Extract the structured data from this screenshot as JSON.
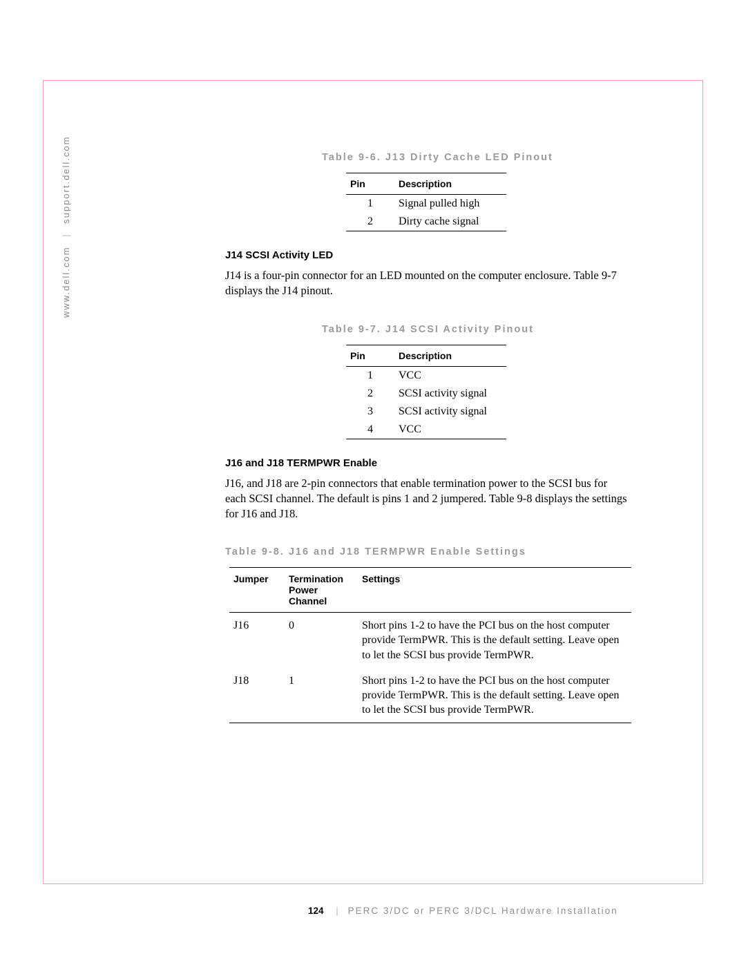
{
  "side": {
    "left": "www.dell.com",
    "right": "support.dell.com"
  },
  "footer": {
    "page": "124",
    "title": "PERC 3/DC or PERC 3/DCL Hardware Installation"
  },
  "table96": {
    "caption": "Table 9-6. J13 Dirty Cache LED Pinout",
    "headers": [
      "Pin",
      "Description"
    ],
    "rows": [
      [
        "1",
        "Signal pulled high"
      ],
      [
        "2",
        "Dirty cache signal"
      ]
    ]
  },
  "sec_j14": {
    "heading": "J14 SCSI Activity LED",
    "body": "J14 is a four-pin connector for an LED mounted on the computer enclosure. Table 9-7 displays the J14 pinout."
  },
  "table97": {
    "caption": "Table 9-7. J14 SCSI Activity Pinout",
    "headers": [
      "Pin",
      "Description"
    ],
    "rows": [
      [
        "1",
        "VCC"
      ],
      [
        "2",
        "SCSI activity signal"
      ],
      [
        "3",
        "SCSI activity signal"
      ],
      [
        "4",
        "VCC"
      ]
    ]
  },
  "sec_j16": {
    "heading": "J16 and J18 TERMPWR Enable",
    "body": "J16, and J18 are 2-pin connectors that enable termination power to the SCSI bus for each SCSI channel. The default is pins 1 and 2 jumpered. Table 9-8 displays the settings for J16 and J18."
  },
  "table98": {
    "caption": "Table 9-8. J16 and J18 TERMPWR Enable Settings",
    "headers": [
      "Jumper",
      "Termination Power Channel",
      "Settings"
    ],
    "rows": [
      [
        "J16",
        "0",
        "Short pins 1-2 to have the PCI bus on the host computer provide TermPWR. This is the default setting. Leave open to let the SCSI bus provide TermPWR."
      ],
      [
        "J18",
        "1",
        "Short pins 1-2 to have the PCI bus on the host computer provide TermPWR. This is the default setting. Leave open to let the SCSI bus provide TermPWR."
      ]
    ]
  }
}
